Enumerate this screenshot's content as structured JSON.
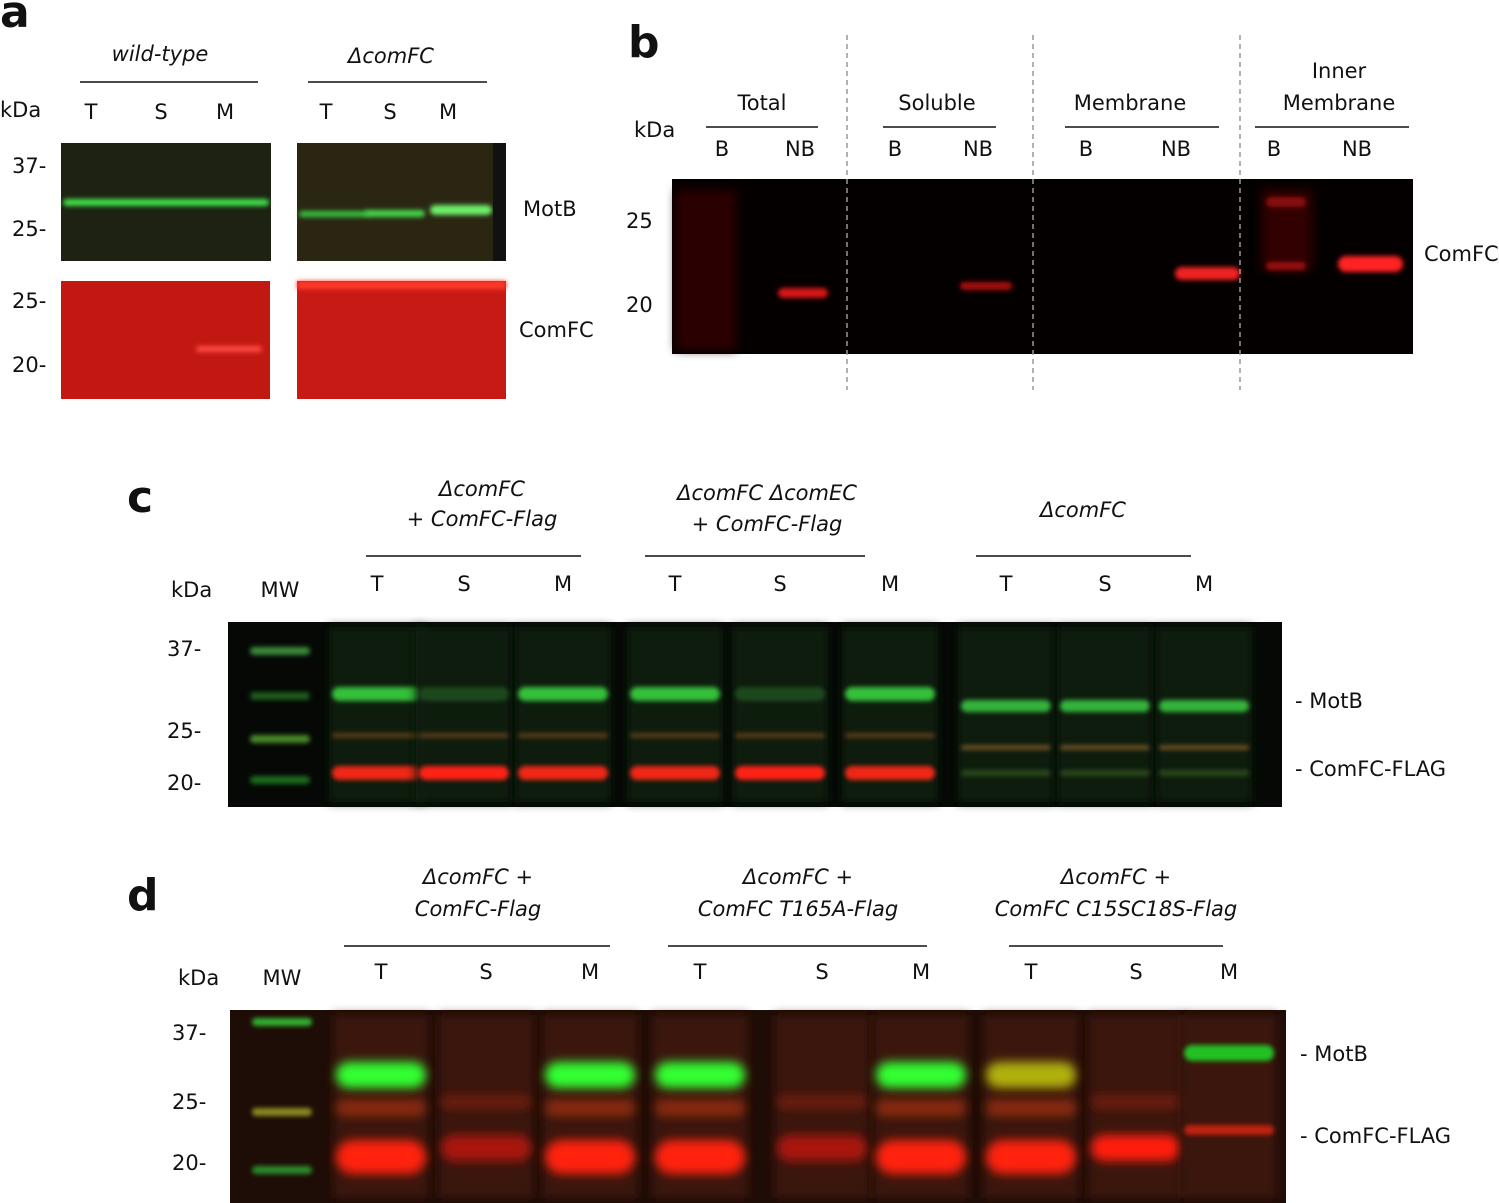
{
  "panel_a": {
    "label": "a",
    "unit": "kDa",
    "groups": [
      {
        "label_lines": [
          "wild-type"
        ],
        "lanes": [
          "T",
          "S",
          "M"
        ]
      },
      {
        "label_lines": [
          "ΔcomFC"
        ],
        "lanes": [
          "T",
          "S",
          "M"
        ]
      }
    ],
    "blots": [
      {
        "protein": "MotB",
        "markers": [
          "37-",
          "25-"
        ]
      },
      {
        "protein": "ComFC",
        "markers": [
          "25-",
          "20-"
        ]
      }
    ]
  },
  "panel_b": {
    "label": "b",
    "unit": "kDa",
    "groups": [
      {
        "label_lines": [
          "Total"
        ],
        "lanes": [
          "B",
          "NB"
        ]
      },
      {
        "label_lines": [
          "Soluble"
        ],
        "lanes": [
          "B",
          "NB"
        ]
      },
      {
        "label_lines": [
          "Membrane"
        ],
        "lanes": [
          "B",
          "NB"
        ]
      },
      {
        "label_lines": [
          "Inner",
          "Membrane"
        ],
        "lanes": [
          "B",
          "NB"
        ]
      }
    ],
    "markers": [
      "25",
      "20"
    ],
    "protein": "ComFC"
  },
  "panel_c": {
    "label": "c",
    "unit": "kDa",
    "ladder": "MW",
    "groups": [
      {
        "label_lines": [
          "ΔcomFC",
          "+ ComFC-Flag"
        ],
        "lanes": [
          "T",
          "S",
          "M"
        ]
      },
      {
        "label_lines": [
          "ΔcomFC ΔcomEC",
          "+ ComFC-Flag"
        ],
        "lanes": [
          "T",
          "S",
          "M"
        ]
      },
      {
        "label_lines": [
          "ΔcomFC"
        ],
        "lanes": [
          "T",
          "S",
          "M"
        ]
      }
    ],
    "markers": [
      "37-",
      "25-",
      "20-"
    ],
    "bands": [
      "- MotB",
      "- ComFC-FLAG"
    ]
  },
  "panel_d": {
    "label": "d",
    "unit": "kDa",
    "ladder": "MW",
    "groups": [
      {
        "label_lines": [
          "ΔcomFC +",
          "ComFC-Flag"
        ],
        "lanes": [
          "T",
          "S",
          "M"
        ]
      },
      {
        "label_lines": [
          "ΔcomFC +",
          "ComFC T165A-Flag"
        ],
        "lanes": [
          "T",
          "S",
          "M"
        ]
      },
      {
        "label_lines": [
          "ΔcomFC +",
          "ComFC C15SC18S-Flag"
        ],
        "lanes": [
          "T",
          "S",
          "M"
        ]
      }
    ],
    "markers": [
      "37-",
      "25-",
      "20-"
    ],
    "bands": [
      "- MotB",
      "- ComFC-FLAG"
    ]
  }
}
